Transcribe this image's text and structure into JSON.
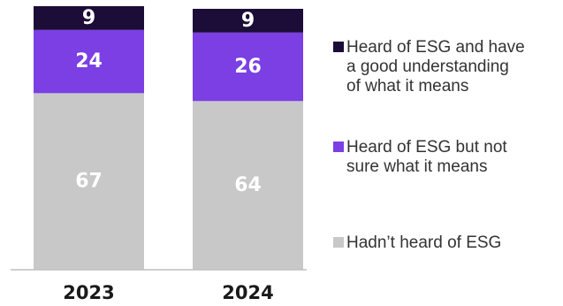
{
  "chart_data": {
    "type": "bar",
    "stacked": true,
    "orientation": "vertical",
    "categories": [
      "2023",
      "2024"
    ],
    "series": [
      {
        "name": "Hadn’t heard of ESG",
        "values": [
          67,
          64
        ],
        "color": "#c8c8c8",
        "label_color": "#ffffff",
        "legend_lines": [
          "Hadn’t heard of ESG"
        ]
      },
      {
        "name": "Heard of ESG but not sure what it means",
        "values": [
          24,
          26
        ],
        "color": "#7b3fe4",
        "label_color": "#ffffff",
        "legend_lines": [
          "Heard of ESG but not",
          "sure what it means"
        ]
      },
      {
        "name": "Heard of ESG and have a good understanding of what it means",
        "values": [
          9,
          9
        ],
        "color": "#1c0c38",
        "label_color": "#ffffff",
        "legend_lines": [
          "Heard of ESG and have",
          "a good understanding",
          "of what it means"
        ]
      }
    ],
    "ylim": [
      0,
      100
    ],
    "title": "",
    "xlabel": "",
    "ylabel": "",
    "grid": false,
    "legend_position": "right"
  }
}
